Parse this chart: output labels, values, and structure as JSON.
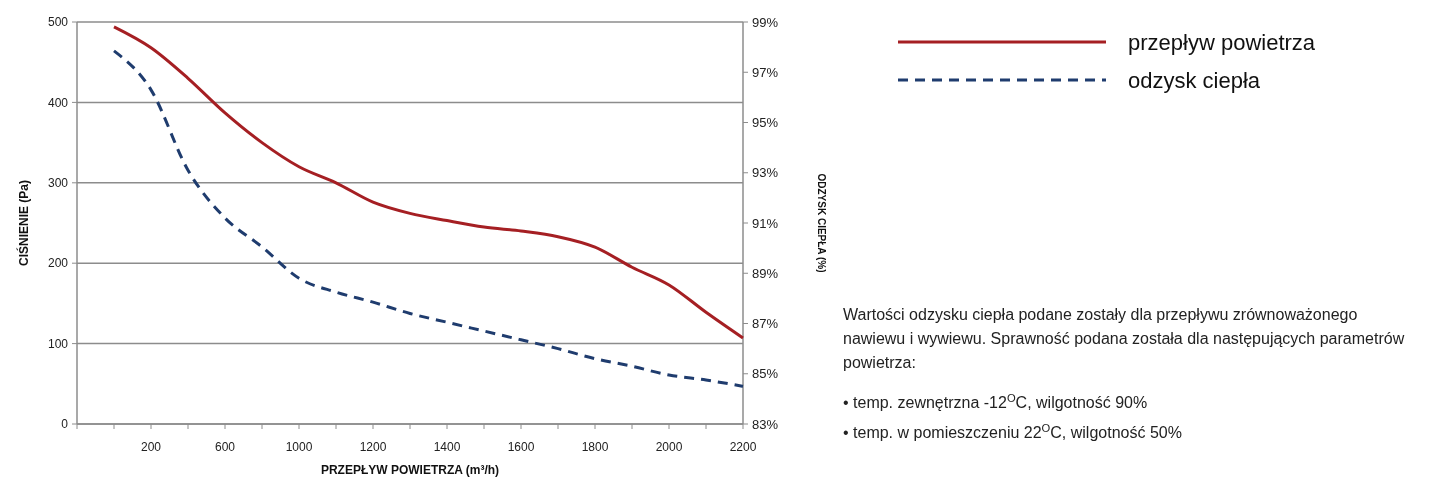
{
  "chart_data": {
    "type": "line",
    "xlabel": "PRZEPŁYW POWIETRZA (m³/h)",
    "ylabel": "CIŚNIENIE (Pa)",
    "y2label": "ODZYSK CIEPŁA (%)",
    "categories": [
      null,
      "200",
      null,
      "600",
      null,
      "1000",
      null,
      "1200",
      null,
      "1400",
      null,
      "1600",
      null,
      "1800",
      null,
      "2000",
      null,
      "2200"
    ],
    "series": [
      {
        "name": "przepływ powietrza",
        "color": "#a51f23",
        "line_style": "solid",
        "values": [
          494,
          468,
          430,
          387,
          350,
          320,
          300,
          276,
          262,
          253,
          245,
          240,
          233,
          220,
          195,
          173,
          139,
          107
        ]
      },
      {
        "name": "odzysk ciepła",
        "color": "#1f3c6e",
        "line_style": "dashed",
        "axis": "y2",
        "values": [
          97.85,
          96.3,
          93.1,
          91.2,
          90.05,
          88.8,
          88.25,
          87.85,
          87.4,
          87.05,
          86.7,
          86.35,
          86.0,
          85.6,
          85.3,
          84.95,
          84.75,
          84.5
        ]
      }
    ],
    "ylim": [
      0,
      500
    ],
    "yticks": [
      0,
      100,
      200,
      300,
      400,
      500
    ],
    "y2lim": [
      83,
      99
    ],
    "y2ticks": [
      {
        "value": 83,
        "label": "83%"
      },
      {
        "value": 85,
        "label": "85%"
      },
      {
        "value": 87,
        "label": "87%"
      },
      {
        "value": 89,
        "label": "89%"
      },
      {
        "value": 91,
        "label": "91%"
      },
      {
        "value": 93,
        "label": "93%"
      },
      {
        "value": 95,
        "label": "95%"
      },
      {
        "value": 97,
        "label": "97%"
      },
      {
        "value": 99,
        "label": "99%"
      }
    ],
    "grid": "y",
    "legend": "top right",
    "marker": "none",
    "annotations": [
      "Wartości odzysku ciepła podane zostały dla przepływu zrównoważonego nawiewu i wywiewu. Sprawność podana została dla następujących parametrów powietrza:",
      "• temp. zewnętrzna -12$^{O}$C, wilgotność 90%",
      "• temp. w pomieszczeniu 22$^{O}$C, wilgotność 50%"
    ]
  }
}
